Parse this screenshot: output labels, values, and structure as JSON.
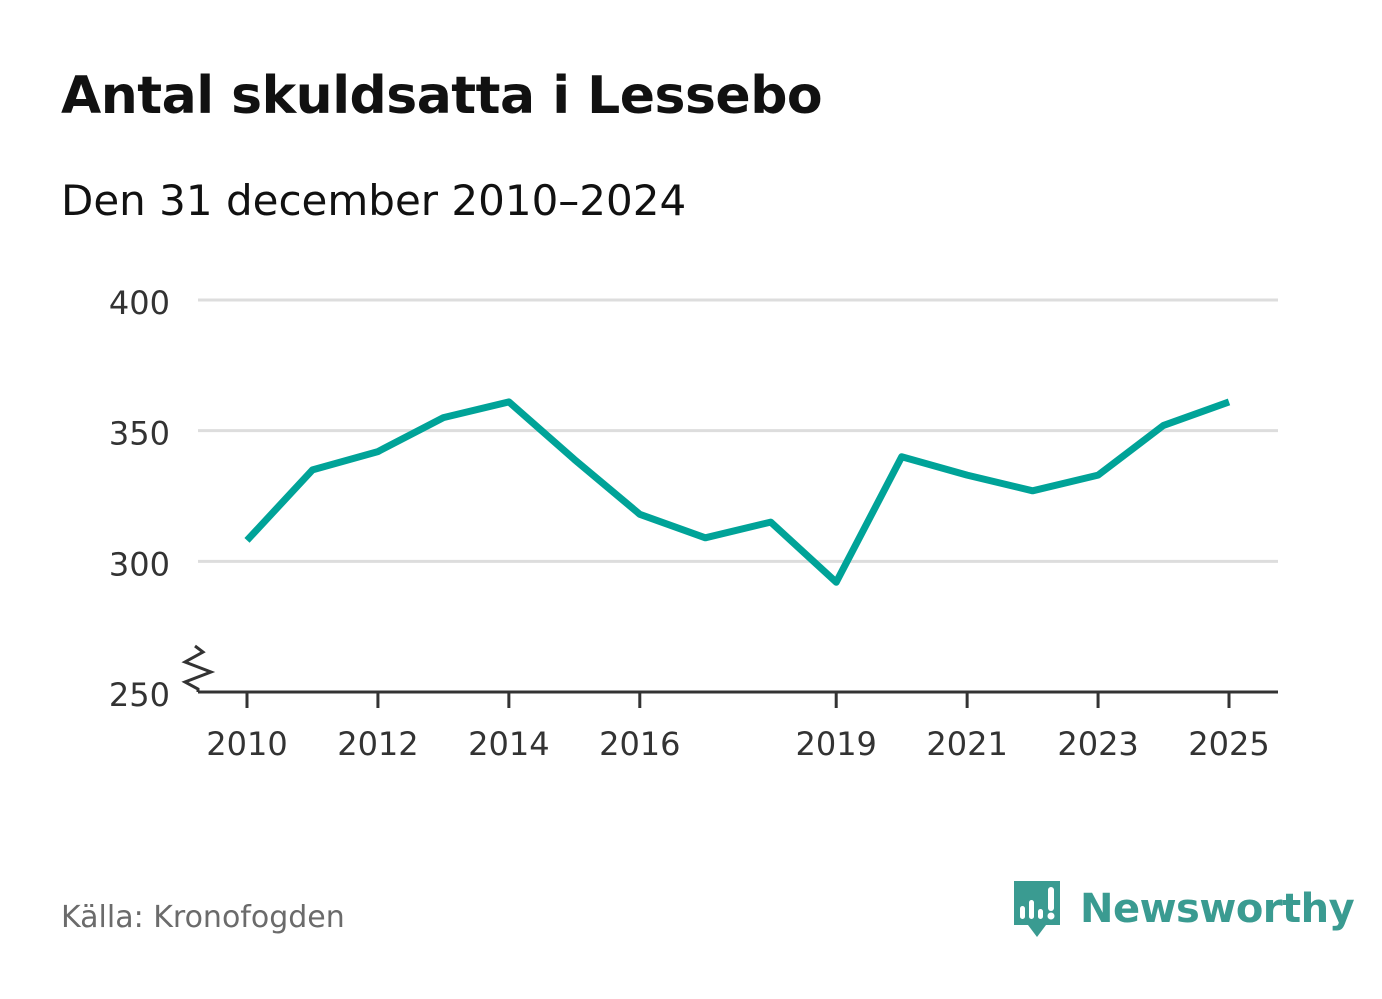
{
  "header": {
    "title": "Antal skuldsatta i Lessebo",
    "subtitle": "Den 31 december 2010–2024"
  },
  "footer": {
    "source": "Källa: Kronofogden",
    "brand": "Newsworthy"
  },
  "colors": {
    "line": "#00a398",
    "grid": "#dddddd",
    "axis": "#333333",
    "text": "#333333",
    "brand": "#3a9b91"
  },
  "icons": {
    "brand_logo": "bar-chart-bubble-icon",
    "axis_break": "zigzag-axis-break-icon"
  },
  "chart_data": {
    "type": "line",
    "title": "Antal skuldsatta i Lessebo",
    "subtitle": "Den 31 december 2010–2024",
    "xlabel": "",
    "ylabel": "",
    "xlim": [
      2010,
      2025
    ],
    "ylim": [
      250,
      400
    ],
    "y_axis_break": true,
    "grid": true,
    "legend": "none",
    "y_ticks": [
      250,
      300,
      350,
      400
    ],
    "x_ticks": [
      2010,
      2012,
      2014,
      2016,
      2019,
      2021,
      2023,
      2025
    ],
    "series": [
      {
        "name": "Antal skuldsatta",
        "x": [
          2010,
          2011,
          2012,
          2013,
          2014,
          2015,
          2016,
          2017,
          2018,
          2019,
          2020,
          2021,
          2022,
          2023,
          2024,
          2025
        ],
        "values": [
          308,
          335,
          342,
          355,
          361,
          339,
          318,
          309,
          315,
          292,
          340,
          333,
          327,
          333,
          352,
          361
        ]
      }
    ]
  }
}
